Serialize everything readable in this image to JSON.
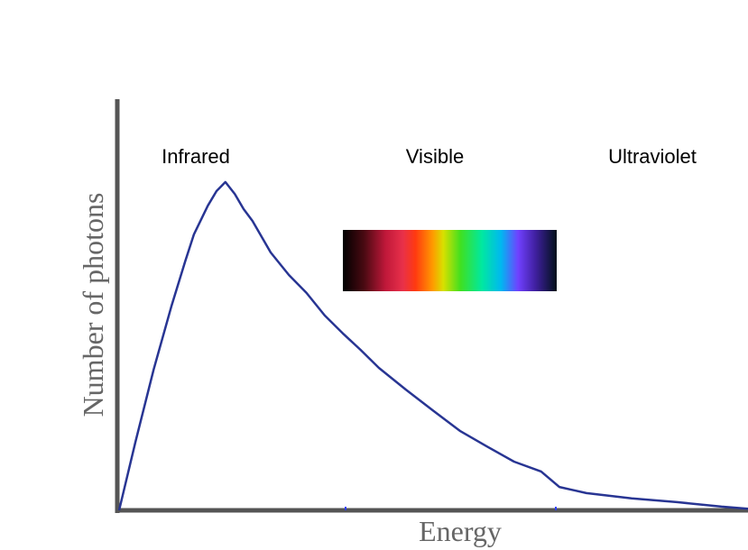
{
  "chart_data": {
    "type": "line",
    "xlabel": "Energy",
    "ylabel": "Number of photons",
    "annotations": [
      "Infrared",
      "Visible",
      "Ultraviolet"
    ],
    "xlim": [
      0,
      100
    ],
    "ylim": [
      0,
      100
    ],
    "series": [
      {
        "color": "#283593",
        "x": [
          0,
          2.6,
          5.5,
          8.3,
          10.5,
          11.9,
          14.1,
          15.5,
          16.9,
          18.4,
          19.8,
          21.2,
          24.1,
          27.0,
          29.8,
          32.7,
          35.6,
          38.4,
          41.3,
          45.6,
          49.9,
          54.2,
          58.5,
          62.8,
          67.1,
          70.0,
          74.3,
          81.5,
          88.7,
          95.8,
          100
        ],
        "values": [
          0,
          16.7,
          34.4,
          49.8,
          60.8,
          67.4,
          74.4,
          78.0,
          80.2,
          77.3,
          73.6,
          70.7,
          63.0,
          57.5,
          53.1,
          47.6,
          43.2,
          39.2,
          34.8,
          29.5,
          24.4,
          19.4,
          15.6,
          11.9,
          9.5,
          5.7,
          4.2,
          2.9,
          2.0,
          0.9,
          0.4
        ]
      }
    ]
  }
}
